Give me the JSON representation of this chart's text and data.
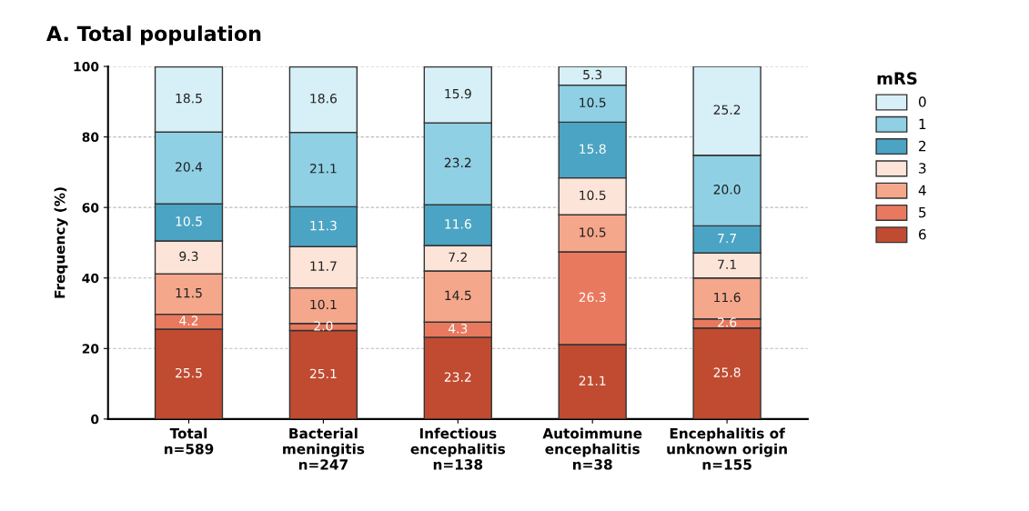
{
  "chart_data": {
    "type": "bar",
    "title": "A. Total population",
    "ylabel": "Frequency (%)",
    "legend_title": "mRS",
    "stacked": true,
    "grid": "y",
    "legend": "right",
    "categories": [
      "Total\nn=589",
      "Bacterial\nmeningitis\nn=247",
      "Infectious\nencephalitis\nn=138",
      "Autoimmune\nencephalitis\nn=38",
      "Encephalitis of\nunknown origin\nn=155"
    ],
    "ylim": [
      0,
      100
    ],
    "yticks": [
      0,
      20,
      40,
      60,
      80,
      100
    ],
    "series": [
      {
        "name": "6",
        "color": "#c04b31",
        "values": [
          25.5,
          25.1,
          23.2,
          21.1,
          25.8
        ],
        "value_labels": [
          "25.5",
          "25.1",
          "23.2",
          "21.1",
          "25.8"
        ]
      },
      {
        "name": "5",
        "color": "#e8795f",
        "values": [
          4.2,
          2.0,
          4.3,
          26.3,
          2.6
        ],
        "value_labels": [
          "4.2",
          "2.0",
          "4.3",
          "26.3",
          "2.6"
        ]
      },
      {
        "name": "4",
        "color": "#f5a78c",
        "values": [
          11.5,
          10.1,
          14.5,
          10.5,
          11.6
        ],
        "value_labels": [
          "11.5",
          "10.1",
          "14.5",
          "10.5",
          "11.6"
        ]
      },
      {
        "name": "3",
        "color": "#fde4d8",
        "values": [
          9.3,
          11.7,
          7.2,
          10.5,
          7.1
        ],
        "value_labels": [
          "9.3",
          "11.7",
          "7.2",
          "10.5",
          "7.1"
        ]
      },
      {
        "name": "2",
        "color": "#4ba4c3",
        "values": [
          10.5,
          11.3,
          11.6,
          15.8,
          7.7
        ],
        "value_labels": [
          "10.5",
          "11.3",
          "11.6",
          "15.8",
          "7.7"
        ]
      },
      {
        "name": "1",
        "color": "#8fd0e4",
        "values": [
          20.4,
          21.1,
          23.2,
          10.5,
          20.0
        ],
        "value_labels": [
          "20.4",
          "21.1",
          "23.2",
          "10.5",
          "20.0"
        ]
      },
      {
        "name": "0",
        "color": "#d7eff6",
        "values": [
          18.5,
          18.6,
          15.9,
          5.3,
          25.2
        ],
        "value_labels": [
          "18.5",
          "18.6",
          "15.9",
          "5.3",
          "25.2"
        ]
      }
    ]
  }
}
